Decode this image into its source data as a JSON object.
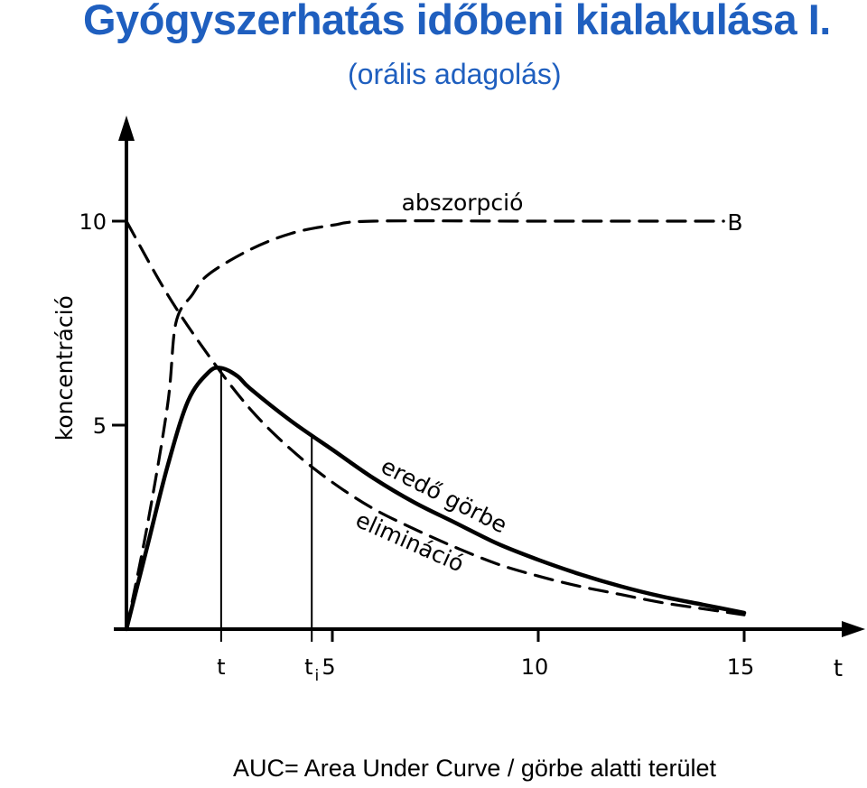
{
  "title": "Gyógyszerhatás időbeni kialakulása I.",
  "subtitle": "(orális adagolás)",
  "footer": "AUC= Area Under Curve / görbe alatti terület",
  "chart_data": {
    "type": "line",
    "xlabel": "t",
    "ylabel": "koncentráció",
    "xlim": [
      0,
      17.5
    ],
    "ylim": [
      0,
      12.4
    ],
    "x_ticks": [
      5,
      10,
      15
    ],
    "y_ticks": [
      5,
      10
    ],
    "extra_x_ticks": [
      "t",
      "ti"
    ],
    "series": [
      {
        "name": "abszorpció",
        "style": "dashed",
        "end_label": "B",
        "points": [
          [
            0,
            0
          ],
          [
            0.5,
            2.5
          ],
          [
            1.0,
            5.5
          ],
          [
            1.2,
            7.5
          ],
          [
            1.6,
            8.2
          ],
          [
            2,
            8.7
          ],
          [
            3,
            9.3
          ],
          [
            4,
            9.7
          ],
          [
            5,
            9.9
          ],
          [
            6,
            10
          ],
          [
            10,
            10
          ],
          [
            14.5,
            10
          ]
        ]
      },
      {
        "name": "elimináció",
        "style": "dashed",
        "points": [
          [
            0,
            10
          ],
          [
            1,
            8.2
          ],
          [
            2,
            6.7
          ],
          [
            3,
            5.4
          ],
          [
            4,
            4.4
          ],
          [
            5,
            3.6
          ],
          [
            6,
            2.95
          ],
          [
            7,
            2.45
          ],
          [
            8,
            2
          ],
          [
            9,
            1.6
          ],
          [
            10,
            1.3
          ],
          [
            11,
            1.05
          ],
          [
            12,
            0.85
          ],
          [
            13,
            0.65
          ],
          [
            14,
            0.5
          ],
          [
            15,
            0.35
          ]
        ]
      },
      {
        "name": "eredő görbe",
        "style": "solid",
        "points": [
          [
            0,
            0
          ],
          [
            0.5,
            2
          ],
          [
            1,
            4
          ],
          [
            1.5,
            5.6
          ],
          [
            2,
            6.3
          ],
          [
            2.3,
            6.4
          ],
          [
            2.7,
            6.2
          ],
          [
            3,
            5.9
          ],
          [
            4,
            5.1
          ],
          [
            5,
            4.4
          ],
          [
            6,
            3.7
          ],
          [
            7,
            3.1
          ],
          [
            8,
            2.6
          ],
          [
            9,
            2.1
          ],
          [
            10,
            1.7
          ],
          [
            11,
            1.35
          ],
          [
            12,
            1.05
          ],
          [
            13,
            0.8
          ],
          [
            14,
            0.6
          ],
          [
            15,
            0.4
          ]
        ]
      }
    ],
    "markers": [
      {
        "label": "t",
        "x": 2.3,
        "y": 6.4
      },
      {
        "label": "ti",
        "x": 4.5,
        "y": 4.75
      }
    ]
  }
}
